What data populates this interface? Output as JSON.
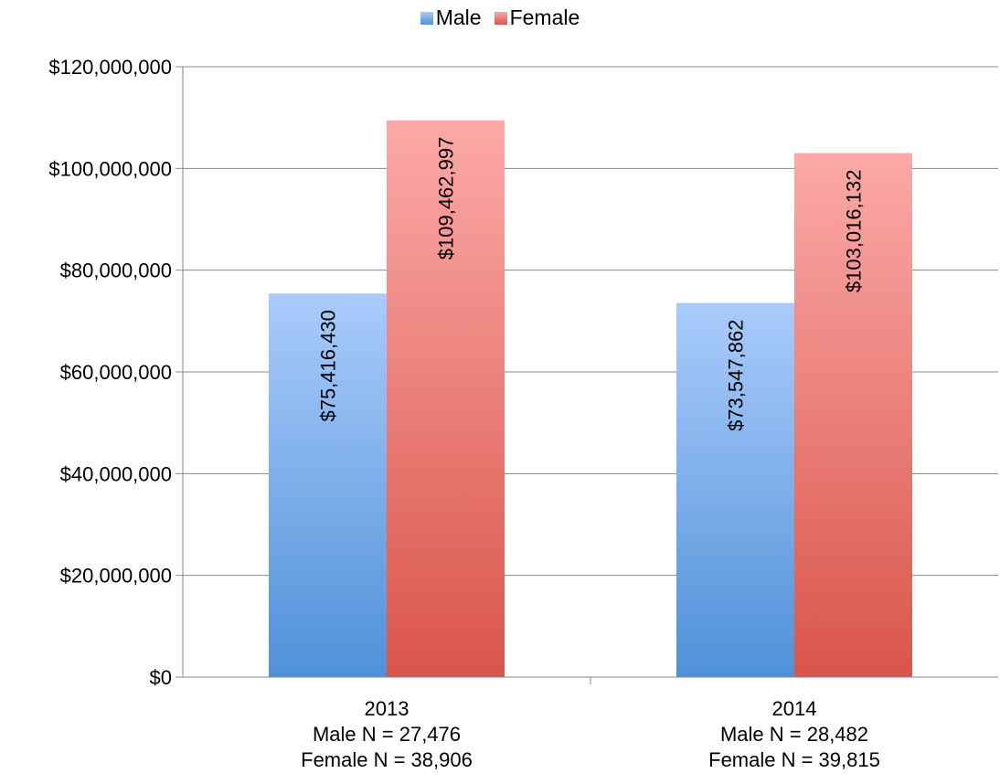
{
  "chart_data": {
    "type": "bar",
    "categories": [
      [
        "2013",
        "Male N = 27,476",
        "Female N = 38,906"
      ],
      [
        "2014",
        "Male N = 28,482",
        "Female N = 39,815"
      ]
    ],
    "series": [
      {
        "name": "Male",
        "values": [
          75416430,
          73547862
        ],
        "labels": [
          "$75,416,430",
          "$73,547,862"
        ],
        "color_top": "#aacbfb",
        "color_bottom": "#4f91d8"
      },
      {
        "name": "Female",
        "values": [
          109462997,
          103016132
        ],
        "labels": [
          "$109,462,997",
          "$103,016,132"
        ],
        "color_top": "#fca9a7",
        "color_bottom": "#d9554b"
      }
    ],
    "ylim": [
      0,
      120000000
    ],
    "yticks": [
      0,
      20000000,
      40000000,
      60000000,
      80000000,
      100000000,
      120000000
    ],
    "ytick_labels": [
      "$0",
      "$20,000,000",
      "$40,000,000",
      "$60,000,000",
      "$80,000,000",
      "$100,000,000",
      "$120,000,000"
    ],
    "grid": true,
    "legend_position": "top-center",
    "title": "",
    "xlabel": "",
    "ylabel": ""
  }
}
